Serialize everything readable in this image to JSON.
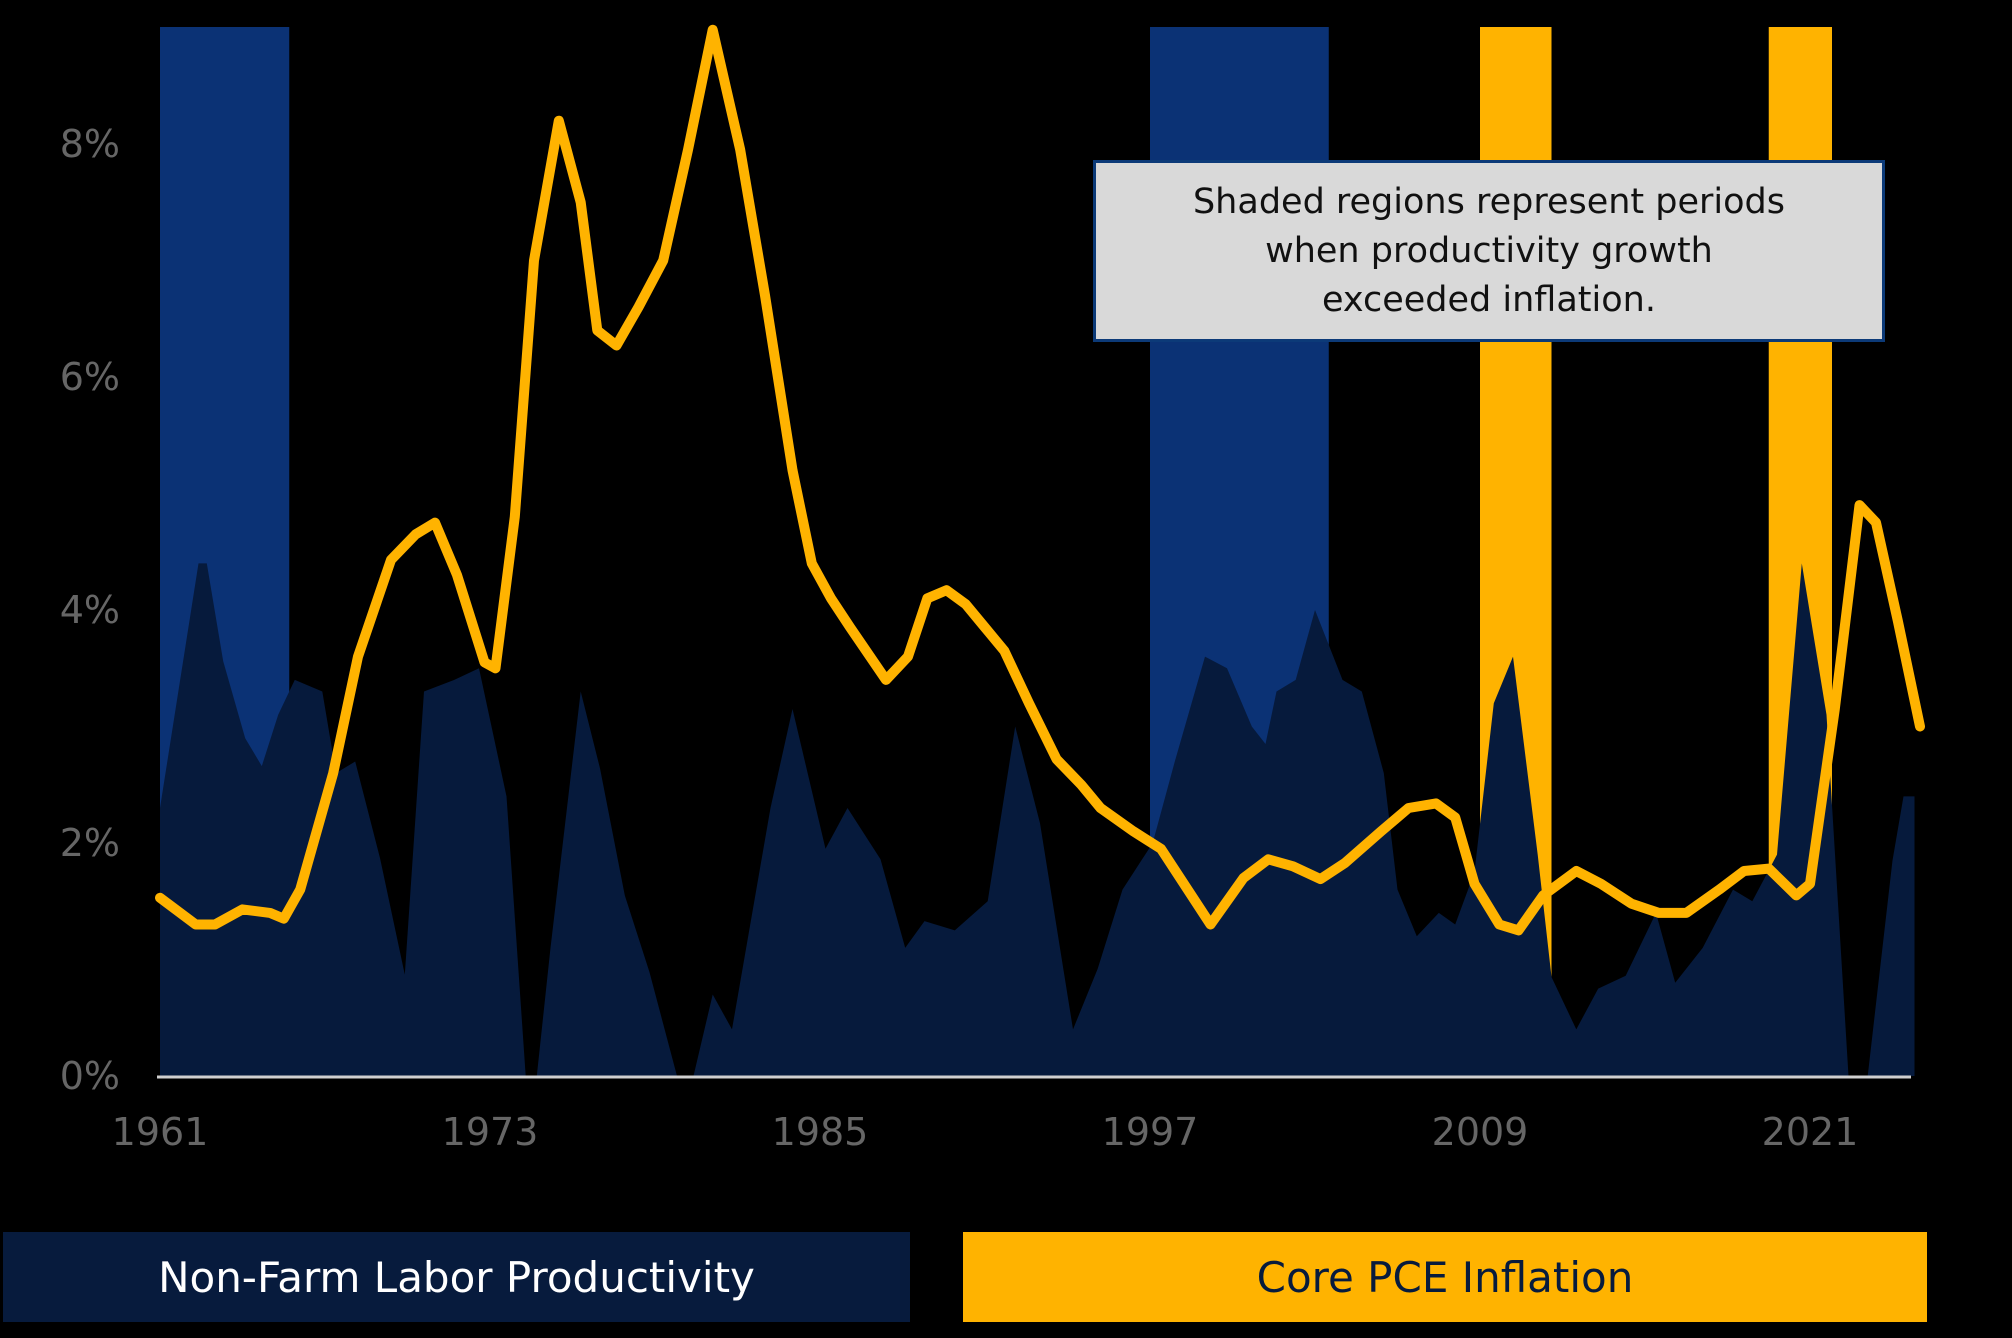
{
  "colors": {
    "background": "#000000",
    "productivity_area": "#061a3c",
    "productivity_shade": "#0b3275",
    "inflation_line": "#ffb300",
    "inflation_shade": "#ffb300",
    "axis": "#d0d0d0",
    "tick_label": "#666666"
  },
  "annotation": {
    "lines": [
      "Shaded regions represent periods",
      "when productivity growth",
      "exceeded inflation."
    ]
  },
  "legend": {
    "productivity_label": "Non-Farm Labor Productivity",
    "inflation_label": "Core PCE Inflation"
  },
  "chart_data": {
    "type": "area",
    "title": "",
    "xlabel": "",
    "ylabel": "",
    "x_ticks": [
      "1961",
      "1973",
      "1985",
      "1997",
      "2009",
      "2021"
    ],
    "y_ticks": [
      "0%",
      "2%",
      "4%",
      "6%",
      "8%"
    ],
    "xlim": [
      1961,
      2025
    ],
    "ylim": [
      0,
      9
    ],
    "grid": false,
    "legend_position": "bottom",
    "shaded_regions": [
      {
        "start": 1961.0,
        "end": 1965.7,
        "type": "productivity_exceeds",
        "color": "#0b3275"
      },
      {
        "start": 1997.0,
        "end": 2003.5,
        "type": "productivity_exceeds",
        "color": "#0b3275"
      },
      {
        "start": 2009.0,
        "end": 2011.6,
        "type": "productivity_exceeds",
        "color": "#ffb300"
      },
      {
        "start": 2019.5,
        "end": 2021.8,
        "type": "productivity_exceeds",
        "color": "#ffb300"
      }
    ],
    "series": [
      {
        "name": "Non-Farm Labor Productivity",
        "style": "area",
        "points": [
          [
            1961.0,
            2.3
          ],
          [
            1962.4,
            4.4
          ],
          [
            1962.7,
            4.4
          ],
          [
            1963.3,
            3.56
          ],
          [
            1964.1,
            2.9
          ],
          [
            1964.7,
            2.66
          ],
          [
            1965.3,
            3.1
          ],
          [
            1965.9,
            3.4
          ],
          [
            1966.9,
            3.3
          ],
          [
            1967.4,
            2.6
          ],
          [
            1968.1,
            2.7
          ],
          [
            1969.0,
            1.87
          ],
          [
            1969.9,
            0.87
          ],
          [
            1970.6,
            3.3
          ],
          [
            1971.7,
            3.4
          ],
          [
            1972.6,
            3.5
          ],
          [
            1973.6,
            2.4
          ],
          [
            1974.3,
            0
          ],
          [
            1974.7,
            0
          ],
          [
            1975.2,
            1.1
          ],
          [
            1976.3,
            3.3
          ],
          [
            1977.0,
            2.64
          ],
          [
            1977.9,
            1.55
          ],
          [
            1978.8,
            0.89
          ],
          [
            1979.8,
            0
          ],
          [
            1980.4,
            0
          ],
          [
            1981.1,
            0.7
          ],
          [
            1981.8,
            0.4
          ],
          [
            1983.2,
            2.3
          ],
          [
            1984.0,
            3.15
          ],
          [
            1985.2,
            1.95
          ],
          [
            1986.0,
            2.3
          ],
          [
            1987.2,
            1.86
          ],
          [
            1988.1,
            1.1
          ],
          [
            1988.8,
            1.33
          ],
          [
            1989.9,
            1.25
          ],
          [
            1991.1,
            1.5
          ],
          [
            1992.1,
            3.0
          ],
          [
            1993.0,
            2.17
          ],
          [
            1994.2,
            0.4
          ],
          [
            1995.1,
            0.92
          ],
          [
            1996.0,
            1.6
          ],
          [
            1997.1,
            2.0
          ],
          [
            1997.9,
            2.7
          ],
          [
            1999.0,
            3.6
          ],
          [
            1999.8,
            3.5
          ],
          [
            2000.7,
            3.0
          ],
          [
            2001.2,
            2.85
          ],
          [
            2001.6,
            3.3
          ],
          [
            2002.3,
            3.4
          ],
          [
            2003.0,
            4.0
          ],
          [
            2004.0,
            3.4
          ],
          [
            2004.7,
            3.3
          ],
          [
            2005.5,
            2.6
          ],
          [
            2006.0,
            1.6
          ],
          [
            2006.7,
            1.2
          ],
          [
            2007.5,
            1.4
          ],
          [
            2008.1,
            1.3
          ],
          [
            2008.8,
            1.75
          ],
          [
            2009.5,
            3.2
          ],
          [
            2010.2,
            3.6
          ],
          [
            2011.1,
            1.9
          ],
          [
            2011.6,
            0.85
          ],
          [
            2012.5,
            0.4
          ],
          [
            2013.3,
            0.75
          ],
          [
            2014.3,
            0.86
          ],
          [
            2015.4,
            1.4
          ],
          [
            2016.1,
            0.8
          ],
          [
            2017.1,
            1.1
          ],
          [
            2018.2,
            1.6
          ],
          [
            2018.9,
            1.5
          ],
          [
            2019.8,
            1.9
          ],
          [
            2020.7,
            4.4
          ],
          [
            2021.6,
            3.1
          ],
          [
            2022.4,
            0
          ],
          [
            2023.1,
            0
          ],
          [
            2024.0,
            1.85
          ],
          [
            2024.4,
            2.4
          ],
          [
            2024.8,
            2.4
          ]
        ]
      },
      {
        "name": "Core PCE Inflation",
        "style": "line",
        "points": [
          [
            1961.0,
            1.53
          ],
          [
            1962.3,
            1.3
          ],
          [
            1963.0,
            1.3
          ],
          [
            1964.0,
            1.43
          ],
          [
            1965.0,
            1.4
          ],
          [
            1965.5,
            1.35
          ],
          [
            1966.1,
            1.6
          ],
          [
            1967.3,
            2.6
          ],
          [
            1968.2,
            3.6
          ],
          [
            1969.4,
            4.43
          ],
          [
            1970.3,
            4.65
          ],
          [
            1971.0,
            4.75
          ],
          [
            1971.8,
            4.3
          ],
          [
            1972.8,
            3.55
          ],
          [
            1973.2,
            3.5
          ],
          [
            1973.9,
            4.8
          ],
          [
            1974.6,
            7.0
          ],
          [
            1975.5,
            8.2
          ],
          [
            1976.3,
            7.5
          ],
          [
            1976.9,
            6.4
          ],
          [
            1977.6,
            6.27
          ],
          [
            1978.4,
            6.6
          ],
          [
            1979.3,
            7.0
          ],
          [
            1980.2,
            7.95
          ],
          [
            1981.1,
            8.98
          ],
          [
            1982.1,
            7.95
          ],
          [
            1983.0,
            6.7
          ],
          [
            1984.0,
            5.2
          ],
          [
            1984.7,
            4.4
          ],
          [
            1985.4,
            4.1
          ],
          [
            1986.1,
            3.85
          ],
          [
            1987.4,
            3.4
          ],
          [
            1988.2,
            3.6
          ],
          [
            1988.9,
            4.1
          ],
          [
            1989.6,
            4.17
          ],
          [
            1990.3,
            4.05
          ],
          [
            1991.0,
            3.85
          ],
          [
            1991.7,
            3.65
          ],
          [
            1992.6,
            3.2
          ],
          [
            1993.6,
            2.72
          ],
          [
            1994.5,
            2.5
          ],
          [
            1995.2,
            2.3
          ],
          [
            1996.4,
            2.1
          ],
          [
            1997.4,
            1.95
          ],
          [
            1999.2,
            1.3
          ],
          [
            2000.4,
            1.7
          ],
          [
            2001.3,
            1.86
          ],
          [
            2002.2,
            1.8
          ],
          [
            2003.2,
            1.69
          ],
          [
            2004.1,
            1.83
          ],
          [
            2005.4,
            2.1
          ],
          [
            2006.4,
            2.3
          ],
          [
            2007.4,
            2.34
          ],
          [
            2008.1,
            2.22
          ],
          [
            2008.8,
            1.65
          ],
          [
            2009.7,
            1.3
          ],
          [
            2010.4,
            1.25
          ],
          [
            2011.3,
            1.55
          ],
          [
            2012.5,
            1.76
          ],
          [
            2013.4,
            1.65
          ],
          [
            2014.5,
            1.48
          ],
          [
            2015.5,
            1.4
          ],
          [
            2016.5,
            1.4
          ],
          [
            2017.7,
            1.6
          ],
          [
            2018.6,
            1.76
          ],
          [
            2019.5,
            1.78
          ],
          [
            2020.5,
            1.55
          ],
          [
            2021.0,
            1.65
          ],
          [
            2021.9,
            3.15
          ],
          [
            2022.8,
            4.9
          ],
          [
            2023.4,
            4.75
          ],
          [
            2024.2,
            3.9
          ],
          [
            2025.0,
            3.0
          ]
        ]
      }
    ]
  }
}
